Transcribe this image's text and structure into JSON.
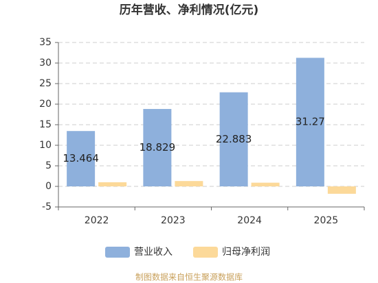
{
  "chart_data": {
    "type": "bar",
    "title": "历年营收、净利情况(亿元)",
    "categories": [
      "2022",
      "2023",
      "2024",
      "2025"
    ],
    "series": [
      {
        "name": "营业收入",
        "color": "#8eb0dc",
        "values": [
          13.464,
          18.829,
          22.883,
          31.27
        ]
      },
      {
        "name": "归母净利润",
        "color": "#fcd999",
        "values": [
          1.0,
          1.3,
          0.9,
          -1.8
        ]
      }
    ],
    "ylim": [
      -5,
      35
    ],
    "yticks": [
      -5,
      0,
      5,
      10,
      15,
      20,
      25,
      30,
      35
    ],
    "grid": true,
    "legend": "bottom",
    "source": "制图数据来自恒生聚源数据库"
  }
}
